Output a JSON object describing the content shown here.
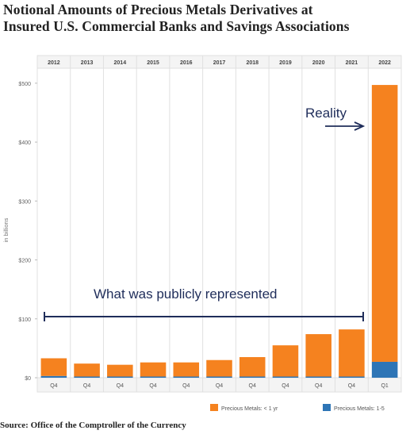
{
  "title_line1": "Notional Amounts of Precious Metals Derivatives at",
  "title_line2": "Insured U.S. Commercial Banks and Savings Associations",
  "source": "Source: Office of the Comptroller of the Currency",
  "annotations": {
    "reality": "Reality",
    "public": "What was publicly represented"
  },
  "colors": {
    "short_term": "#f5821f",
    "long_term": "#2e75b6",
    "grid": "#e0e0e0",
    "annotation": "#1f2d5a"
  },
  "chart_data": {
    "type": "bar",
    "stacked": true,
    "years": [
      "2012",
      "2013",
      "2014",
      "2015",
      "2016",
      "2017",
      "2018",
      "2019",
      "2020",
      "2021",
      "2022"
    ],
    "categories": [
      "Q4",
      "Q4",
      "Q4",
      "Q4",
      "Q4",
      "Q4",
      "Q4",
      "Q4",
      "Q4",
      "Q4",
      "Q1"
    ],
    "ylabel": "in billions",
    "ylim": [
      0,
      520
    ],
    "yticks": [
      0,
      100,
      200,
      300,
      400,
      500
    ],
    "ytick_labels": [
      "$0",
      "$100",
      "$200",
      "$300",
      "$400",
      "$500"
    ],
    "series": [
      {
        "name": "Precious Metals: < 1 yr",
        "values": [
          30,
          22,
          20,
          24,
          24,
          28,
          33,
          53,
          72,
          80,
          470
        ]
      },
      {
        "name": "Precious Metals: 1-5",
        "values": [
          3,
          2,
          2,
          2,
          2,
          2,
          2,
          2,
          2,
          2,
          27
        ]
      }
    ],
    "legend_position": "bottom"
  }
}
